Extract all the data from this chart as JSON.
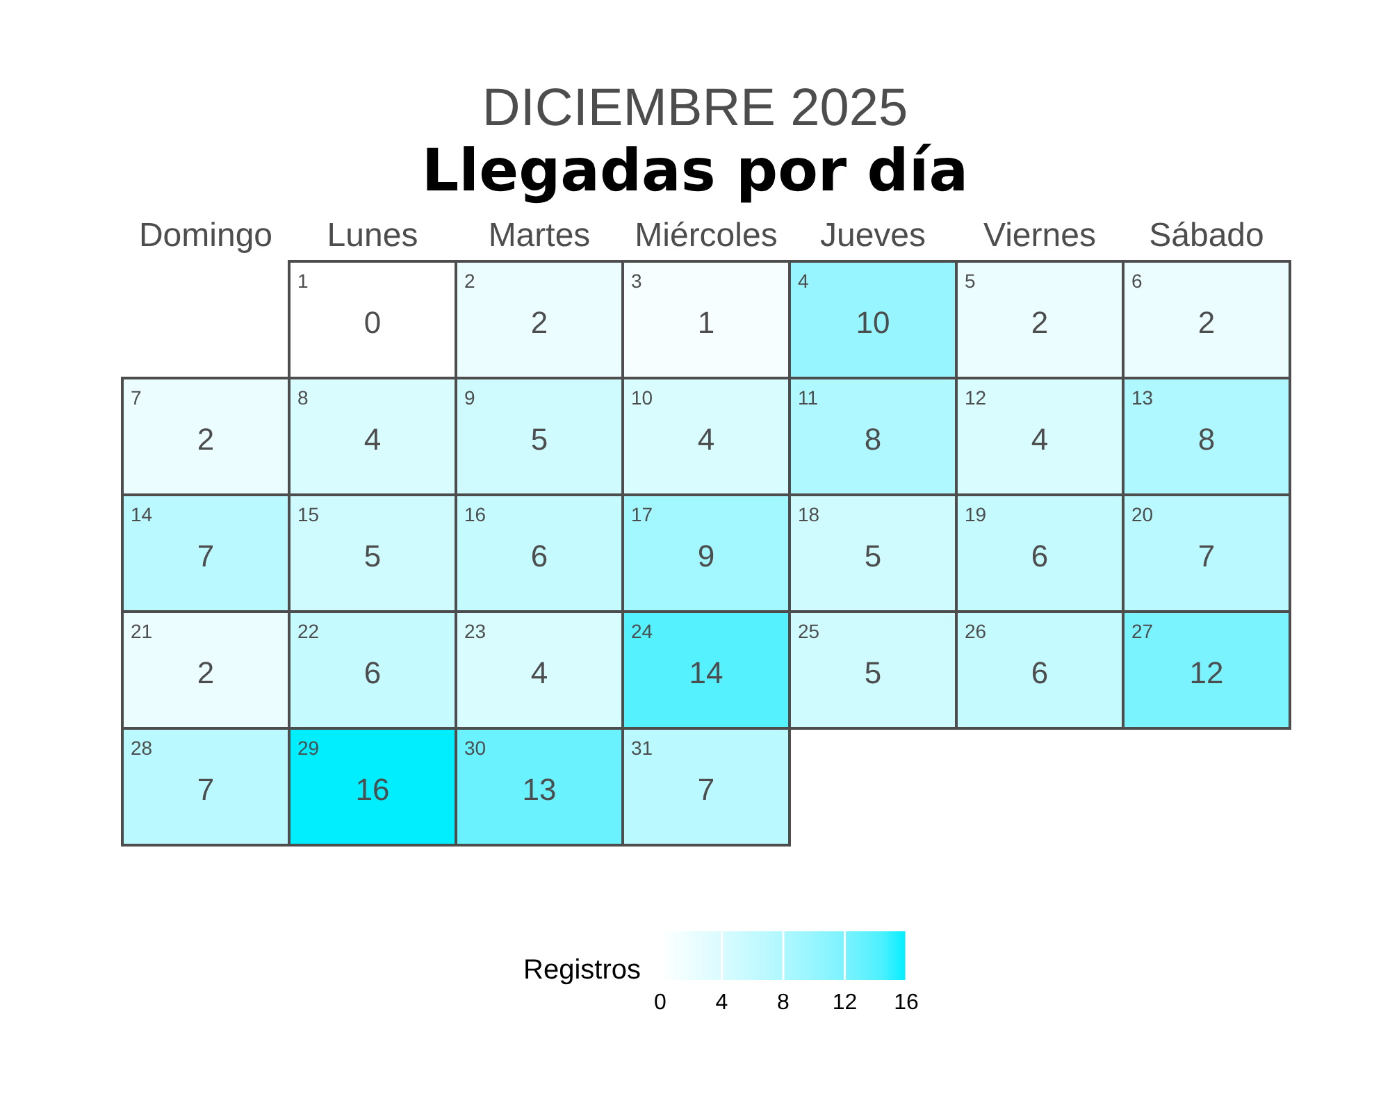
{
  "chart_data": {
    "type": "heatmap",
    "title": "DICIEMBRE 2025",
    "subtitle": "Llegadas por día",
    "categories": [
      "Domingo",
      "Lunes",
      "Martes",
      "Miércoles",
      "Jueves",
      "Viernes",
      "Sábado"
    ],
    "y_categories": [
      null,
      null,
      null,
      null,
      null
    ],
    "cells": [
      [
        null,
        0,
        2,
        1,
        10,
        2,
        2
      ],
      [
        2,
        4,
        5,
        4,
        8,
        4,
        8
      ],
      [
        7,
        5,
        6,
        9,
        5,
        6,
        7
      ],
      [
        2,
        6,
        4,
        14,
        5,
        6,
        12
      ],
      [
        7,
        16,
        13,
        7,
        null,
        null,
        null
      ]
    ],
    "data_labels": true,
    "annotations": [
      "1",
      "2",
      "3",
      "4",
      "5",
      "6",
      "7",
      "8",
      "9",
      "10",
      "11",
      "12",
      "13",
      "14",
      "15",
      "16",
      "17",
      "18",
      "19",
      "20",
      "21",
      "22",
      "23",
      "24",
      "25",
      "26",
      "27",
      "28",
      "29",
      "30",
      "31"
    ],
    "clabel": "Registros",
    "clim": [
      0,
      16
    ],
    "cticks": [
      0,
      4,
      8,
      12,
      16
    ],
    "color": "#00eeff"
  }
}
